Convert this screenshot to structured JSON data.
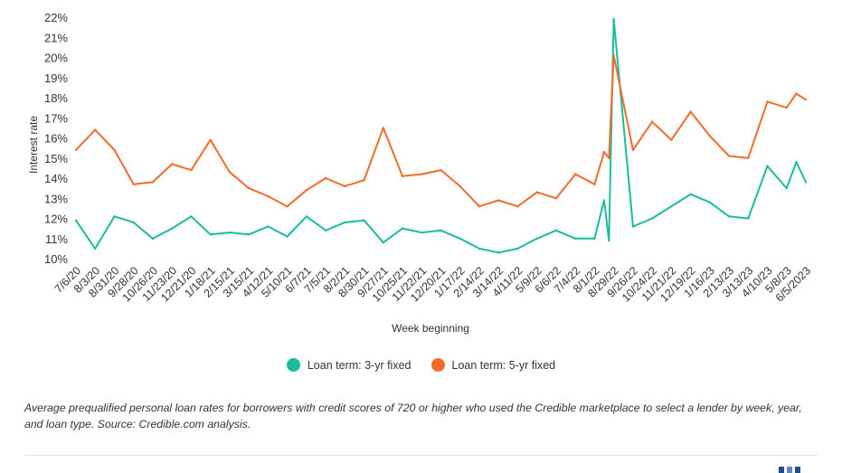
{
  "chart_data": {
    "type": "line",
    "title": "",
    "xlabel": "Week beginning",
    "ylabel": "Interest rate",
    "ylim": [
      10,
      22
    ],
    "y_ticks": [
      "10%",
      "11%",
      "12%",
      "13%",
      "14%",
      "15%",
      "16%",
      "17%",
      "18%",
      "19%",
      "20%",
      "21%",
      "22%"
    ],
    "x_tick_labels": [
      "7/6/20",
      "8/3/20",
      "8/31/20",
      "9/28/20",
      "10/26/20",
      "11/23/20",
      "12/21/20",
      "1/18/21",
      "2/15/21",
      "3/15/21",
      "4/12/21",
      "5/10/21",
      "6/7/21",
      "7/5/21",
      "8/2/21",
      "8/30/21",
      "9/27/21",
      "10/25/21",
      "11/22/21",
      "12/20/21",
      "1/17/22",
      "2/14/22",
      "3/14/22",
      "4/11/22",
      "5/9/22",
      "6/6/22",
      "7/4/22",
      "8/1/22",
      "8/29/22",
      "9/26/22",
      "10/24/22",
      "11/21/22",
      "12/19/22",
      "1/16/23",
      "2/13/23",
      "3/13/23",
      "4/10/23",
      "5/8/23",
      "6/5/2023"
    ],
    "x": [
      "7/6/20",
      "8/3/20",
      "8/31/20",
      "9/28/20",
      "10/26/20",
      "11/23/20",
      "12/21/20",
      "1/18/21",
      "2/15/21",
      "3/15/21",
      "4/12/21",
      "5/10/21",
      "6/7/21",
      "7/5/21",
      "8/2/21",
      "8/30/21",
      "9/27/21",
      "10/25/21",
      "11/22/21",
      "12/20/21",
      "1/17/22",
      "2/14/22",
      "3/14/22",
      "4/11/22",
      "5/9/22",
      "6/6/22",
      "7/4/22",
      "8/1/22",
      "8/15/22",
      "8/22/22",
      "8/29/22",
      "9/26/22",
      "10/24/22",
      "11/21/22",
      "12/19/22",
      "1/16/23",
      "2/13/23",
      "3/13/23",
      "4/10/23",
      "5/8/23",
      "5/22/23",
      "6/5/2023"
    ],
    "series": [
      {
        "name": "Loan term: 3-yr fixed",
        "color": "#1bbc9b",
        "values": [
          11.9,
          10.5,
          12.1,
          11.8,
          11.0,
          11.5,
          12.1,
          11.2,
          11.3,
          11.2,
          11.6,
          11.1,
          12.1,
          11.4,
          11.8,
          11.9,
          10.8,
          11.5,
          11.3,
          11.4,
          11.0,
          10.5,
          10.3,
          10.5,
          11.0,
          11.4,
          11.0,
          11.0,
          12.9,
          10.9,
          21.9,
          11.6,
          12.0,
          12.6,
          13.2,
          12.8,
          12.1,
          12.0,
          14.6,
          13.5,
          14.8,
          13.8
        ]
      },
      {
        "name": "Loan term: 5-yr fixed",
        "color": "#f26b2a",
        "values": [
          15.4,
          16.4,
          15.4,
          13.7,
          13.8,
          14.7,
          14.4,
          15.9,
          14.3,
          13.5,
          13.1,
          12.6,
          13.4,
          14.0,
          13.6,
          13.9,
          16.5,
          14.1,
          14.2,
          14.4,
          13.6,
          12.6,
          12.9,
          12.6,
          13.3,
          13.0,
          14.2,
          13.7,
          15.3,
          15.0,
          20.1,
          15.4,
          16.8,
          15.9,
          17.3,
          16.1,
          15.1,
          15.0,
          17.8,
          17.5,
          18.2,
          17.9
        ]
      }
    ],
    "legend_placement": "bottom-center",
    "grid": false
  },
  "legend": {
    "items": [
      {
        "label": "Loan term: 3-yr fixed",
        "color": "#1bbc9b"
      },
      {
        "label": "Loan term: 5-yr fixed",
        "color": "#f26b2a"
      }
    ]
  },
  "caption": "Average prequalified personal loan rates for borrowers with credit scores of 720 or higher who used the Credible marketplace to select a lender by week, year, and loan type. Source: Credible.com analysis."
}
